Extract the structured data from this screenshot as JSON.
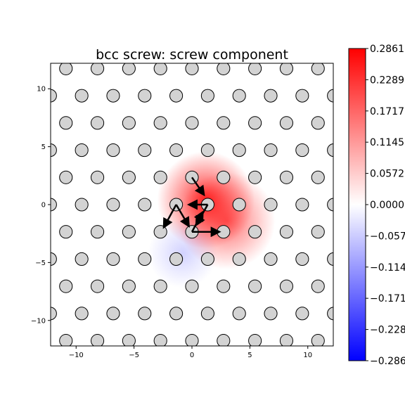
{
  "chart_data": {
    "type": "heatmap",
    "title": "bcc screw: screw component",
    "xlabel": "",
    "ylabel": "",
    "xlim": [
      -12.2,
      12.2
    ],
    "ylim": [
      -12.2,
      12.2
    ],
    "xticks": [
      -10,
      -5,
      0,
      5,
      10
    ],
    "yticks": [
      10,
      5,
      0,
      -5,
      -10
    ],
    "xtick_labels": [
      "−10",
      "−5",
      "0",
      "5",
      "10"
    ],
    "ytick_labels": [
      "10",
      "5",
      "0",
      "−5",
      "−10"
    ],
    "grid": false,
    "colormap": "bwr",
    "colors": {
      "positive": "#ff0000",
      "zero": "#ffffff",
      "negative": "#0000ff"
    },
    "colorbar": {
      "min": -0.2861,
      "max": 0.2861,
      "tick_labels": [
        "0.2861",
        "0.2289",
        "0.1717",
        "0.1145",
        "0.0572",
        "0.0000",
        "−0.057",
        "−0.114",
        "−0.171",
        "−0.228",
        "−0.286"
      ]
    },
    "field_peaks": [
      {
        "x": 1.2,
        "y": 0.4,
        "value": 0.286
      },
      {
        "x": 3.0,
        "y": -1.4,
        "value": 0.2
      },
      {
        "x": -0.8,
        "y": -4.2,
        "value": -0.06
      }
    ],
    "atoms": {
      "lattice_a": 2.72,
      "row_spacing": 2.35,
      "rows": [
        {
          "y": 11.75,
          "x_offset": 0.0
        },
        {
          "y": 9.4,
          "x_offset": 1.36
        },
        {
          "y": 7.05,
          "x_offset": 0.0
        },
        {
          "y": 4.7,
          "x_offset": 1.36
        },
        {
          "y": 2.35,
          "x_offset": 0.0
        },
        {
          "y": 0.0,
          "x_offset": 1.36
        },
        {
          "y": -2.35,
          "x_offset": 0.0
        },
        {
          "y": -4.7,
          "x_offset": 1.36
        },
        {
          "y": -7.05,
          "x_offset": 0.0
        },
        {
          "y": -9.4,
          "x_offset": 1.36
        },
        {
          "y": -11.75,
          "x_offset": 0.0
        }
      ]
    },
    "displacement_arrows": [
      {
        "from": [
          1.36,
          0.0
        ],
        "to": [
          -0.2,
          0.0
        ]
      },
      {
        "from": [
          0.0,
          2.35
        ],
        "to": [
          1.0,
          0.9
        ]
      },
      {
        "from": [
          -1.36,
          0.0
        ],
        "to": [
          -2.4,
          -1.9
        ]
      },
      {
        "from": [
          -1.36,
          0.0
        ],
        "to": [
          -0.3,
          -1.8
        ]
      },
      {
        "from": [
          1.36,
          0.0
        ],
        "to": [
          0.4,
          -1.7
        ]
      },
      {
        "from": [
          0.0,
          -2.35
        ],
        "to": [
          2.3,
          -2.35
        ]
      },
      {
        "from": [
          0.0,
          -2.35
        ],
        "to": [
          0.9,
          -0.7
        ]
      }
    ]
  }
}
